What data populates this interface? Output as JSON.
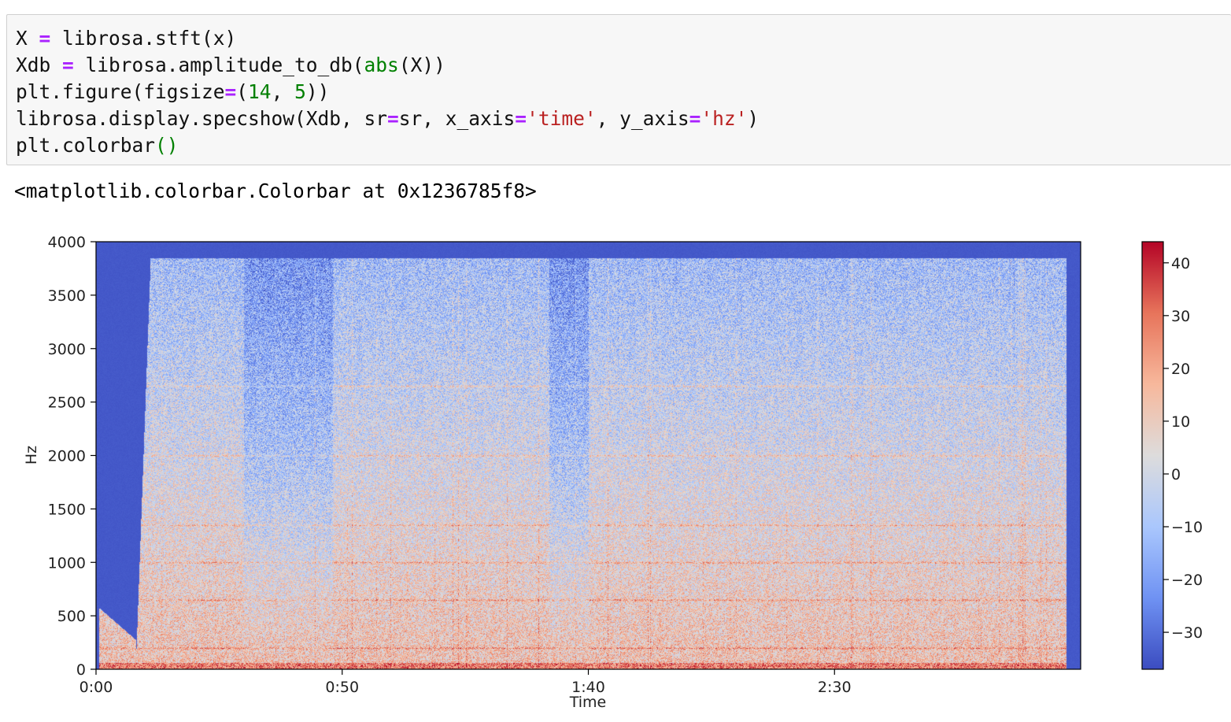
{
  "cell": {
    "code": [
      [
        [
          "plain",
          "X "
        ],
        [
          "op",
          "="
        ],
        [
          "plain",
          " librosa.stft(x)"
        ]
      ],
      [
        [
          "plain",
          "Xdb "
        ],
        [
          "op",
          "="
        ],
        [
          "plain",
          " librosa.amplitude_to_db("
        ],
        [
          "bi",
          "abs"
        ],
        [
          "plain",
          "(X))"
        ]
      ],
      [
        [
          "plain",
          "plt.figure(figsize"
        ],
        [
          "op",
          "="
        ],
        [
          "plain",
          "("
        ],
        [
          "num",
          "14"
        ],
        [
          "plain",
          ", "
        ],
        [
          "num",
          "5"
        ],
        [
          "plain",
          "))"
        ]
      ],
      [
        [
          "plain",
          "librosa.display.specshow(Xdb, sr"
        ],
        [
          "op",
          "="
        ],
        [
          "plain",
          "sr, x_axis"
        ],
        [
          "op",
          "="
        ],
        [
          "str",
          "'time'"
        ],
        [
          "plain",
          ", y_axis"
        ],
        [
          "op",
          "="
        ],
        [
          "str",
          "'hz'"
        ],
        [
          "plain",
          ")"
        ]
      ],
      [
        [
          "plain",
          "plt.colorbar"
        ],
        [
          "bi",
          "()"
        ]
      ]
    ],
    "output_text": "<matplotlib.colorbar.Colorbar at 0x1236785f8>"
  },
  "chart_data": {
    "type": "heatmap",
    "xlabel": "Time",
    "ylabel": "Hz",
    "x_ticks": [
      "0:00",
      "0:50",
      "1:40",
      "2:30"
    ],
    "x_tick_seconds": [
      0,
      50,
      100,
      150
    ],
    "xlim_seconds": [
      0,
      200
    ],
    "y_ticks": [
      0,
      500,
      1000,
      1500,
      2000,
      2500,
      3000,
      3500,
      4000
    ],
    "ylim": [
      0,
      4000
    ],
    "colorbar": {
      "label": "",
      "ticks": [
        40,
        30,
        20,
        10,
        0,
        -10,
        -20,
        -30
      ],
      "range": [
        -37,
        44
      ],
      "colormap": "coolwarm",
      "stops": [
        "#3b4cc0",
        "#6f92f3",
        "#aac7fd",
        "#dddcdc",
        "#f7b89c",
        "#e7745b",
        "#b40426"
      ]
    },
    "sound_start_seconds": 8,
    "sound_end_seconds": 197,
    "quiet_regions_seconds": [
      [
        30,
        48
      ],
      [
        92,
        100
      ]
    ],
    "harmonic_bands_hz": [
      200,
      650,
      1000,
      1350,
      2000,
      2650
    ]
  }
}
